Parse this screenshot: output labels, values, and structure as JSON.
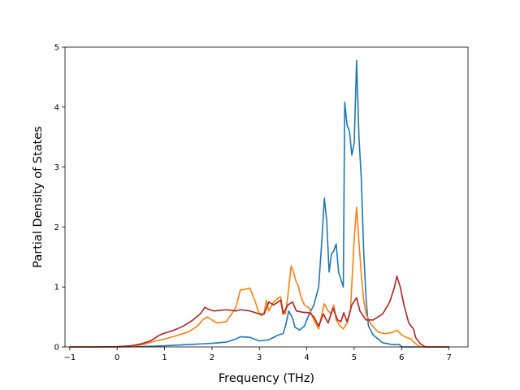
{
  "chart_data": {
    "type": "line",
    "title": "",
    "xlabel": "Frequency (THz)",
    "ylabel": "Partial Density of States",
    "xlim": [
      -1.1,
      7.4
    ],
    "ylim": [
      0,
      5
    ],
    "xticks": [
      -1,
      0,
      1,
      2,
      3,
      4,
      5,
      6,
      7
    ],
    "yticks": [
      0,
      1,
      2,
      3,
      4,
      5
    ],
    "grid": false,
    "legend": "none",
    "series": [
      {
        "color": "#1f77b4",
        "points": [
          [
            -1.0,
            0
          ],
          [
            -0.5,
            0
          ],
          [
            0,
            0
          ],
          [
            0.5,
            0.005
          ],
          [
            1,
            0.02
          ],
          [
            1.5,
            0.04
          ],
          [
            2,
            0.06
          ],
          [
            2.3,
            0.08
          ],
          [
            2.5,
            0.13
          ],
          [
            2.6,
            0.17
          ],
          [
            2.8,
            0.16
          ],
          [
            3,
            0.1
          ],
          [
            3.2,
            0.12
          ],
          [
            3.4,
            0.2
          ],
          [
            3.5,
            0.22
          ],
          [
            3.55,
            0.35
          ],
          [
            3.62,
            0.6
          ],
          [
            3.7,
            0.48
          ],
          [
            3.75,
            0.33
          ],
          [
            3.85,
            0.28
          ],
          [
            3.95,
            0.35
          ],
          [
            4.05,
            0.55
          ],
          [
            4.15,
            0.7
          ],
          [
            4.25,
            1.0
          ],
          [
            4.32,
            1.8
          ],
          [
            4.37,
            2.48
          ],
          [
            4.42,
            2.1
          ],
          [
            4.47,
            1.25
          ],
          [
            4.52,
            1.55
          ],
          [
            4.57,
            1.6
          ],
          [
            4.62,
            1.72
          ],
          [
            4.67,
            1.25
          ],
          [
            4.73,
            1.1
          ],
          [
            4.77,
            1.0
          ],
          [
            4.8,
            4.08
          ],
          [
            4.85,
            3.7
          ],
          [
            4.9,
            3.6
          ],
          [
            4.95,
            3.2
          ],
          [
            5.0,
            3.4
          ],
          [
            5.05,
            4.78
          ],
          [
            5.1,
            3.5
          ],
          [
            5.15,
            2.8
          ],
          [
            5.2,
            1.6
          ],
          [
            5.25,
            0.8
          ],
          [
            5.3,
            0.35
          ],
          [
            5.4,
            0.2
          ],
          [
            5.6,
            0.07
          ],
          [
            5.8,
            0.04
          ],
          [
            5.95,
            0.04
          ],
          [
            6.0,
            0.0
          ],
          [
            6.5,
            0
          ],
          [
            7,
            0
          ]
        ]
      },
      {
        "color": "#ff7f0e",
        "points": [
          [
            -1.0,
            0
          ],
          [
            -0.5,
            0
          ],
          [
            0,
            0
          ],
          [
            0.4,
            0.02
          ],
          [
            0.6,
            0.05
          ],
          [
            0.8,
            0.1
          ],
          [
            1,
            0.13
          ],
          [
            1.3,
            0.2
          ],
          [
            1.5,
            0.25
          ],
          [
            1.7,
            0.35
          ],
          [
            1.8,
            0.45
          ],
          [
            1.9,
            0.5
          ],
          [
            2.0,
            0.45
          ],
          [
            2.1,
            0.4
          ],
          [
            2.3,
            0.42
          ],
          [
            2.5,
            0.65
          ],
          [
            2.6,
            0.95
          ],
          [
            2.7,
            0.96
          ],
          [
            2.8,
            0.98
          ],
          [
            2.9,
            0.78
          ],
          [
            3.0,
            0.55
          ],
          [
            3.05,
            0.52
          ],
          [
            3.1,
            0.57
          ],
          [
            3.15,
            0.78
          ],
          [
            3.2,
            0.6
          ],
          [
            3.3,
            0.75
          ],
          [
            3.4,
            0.82
          ],
          [
            3.45,
            0.83
          ],
          [
            3.5,
            0.58
          ],
          [
            3.55,
            0.55
          ],
          [
            3.6,
            0.85
          ],
          [
            3.67,
            1.35
          ],
          [
            3.72,
            1.25
          ],
          [
            3.77,
            1.1
          ],
          [
            3.82,
            1.02
          ],
          [
            3.87,
            0.85
          ],
          [
            3.95,
            0.7
          ],
          [
            4.05,
            0.65
          ],
          [
            4.15,
            0.45
          ],
          [
            4.25,
            0.3
          ],
          [
            4.32,
            0.55
          ],
          [
            4.37,
            0.72
          ],
          [
            4.45,
            0.6
          ],
          [
            4.52,
            0.55
          ],
          [
            4.57,
            0.7
          ],
          [
            4.62,
            0.45
          ],
          [
            4.7,
            0.35
          ],
          [
            4.77,
            0.3
          ],
          [
            4.85,
            0.4
          ],
          [
            4.92,
            0.6
          ],
          [
            5.0,
            1.8
          ],
          [
            5.05,
            2.33
          ],
          [
            5.1,
            1.75
          ],
          [
            5.15,
            1.2
          ],
          [
            5.2,
            0.78
          ],
          [
            5.25,
            0.55
          ],
          [
            5.35,
            0.38
          ],
          [
            5.5,
            0.25
          ],
          [
            5.65,
            0.22
          ],
          [
            5.8,
            0.24
          ],
          [
            5.9,
            0.28
          ],
          [
            6.0,
            0.2
          ],
          [
            6.1,
            0.16
          ],
          [
            6.2,
            0.13
          ],
          [
            6.3,
            0.05
          ],
          [
            6.4,
            0
          ],
          [
            7,
            0
          ]
        ]
      },
      {
        "color": "#b22222",
        "points": [
          [
            -1.0,
            0
          ],
          [
            -0.5,
            0
          ],
          [
            0,
            0.005
          ],
          [
            0.3,
            0.02
          ],
          [
            0.5,
            0.05
          ],
          [
            0.7,
            0.1
          ],
          [
            0.8,
            0.15
          ],
          [
            0.9,
            0.2
          ],
          [
            1.0,
            0.23
          ],
          [
            1.2,
            0.28
          ],
          [
            1.4,
            0.35
          ],
          [
            1.6,
            0.45
          ],
          [
            1.75,
            0.55
          ],
          [
            1.8,
            0.6
          ],
          [
            1.85,
            0.66
          ],
          [
            1.95,
            0.62
          ],
          [
            2.05,
            0.6
          ],
          [
            2.3,
            0.62
          ],
          [
            2.5,
            0.6
          ],
          [
            2.6,
            0.62
          ],
          [
            2.8,
            0.6
          ],
          [
            3.0,
            0.55
          ],
          [
            3.1,
            0.55
          ],
          [
            3.2,
            0.75
          ],
          [
            3.3,
            0.7
          ],
          [
            3.45,
            0.78
          ],
          [
            3.5,
            0.55
          ],
          [
            3.6,
            0.7
          ],
          [
            3.7,
            0.75
          ],
          [
            3.78,
            0.6
          ],
          [
            3.9,
            0.58
          ],
          [
            4.05,
            0.57
          ],
          [
            4.15,
            0.5
          ],
          [
            4.25,
            0.35
          ],
          [
            4.35,
            0.55
          ],
          [
            4.45,
            0.4
          ],
          [
            4.55,
            0.65
          ],
          [
            4.65,
            0.45
          ],
          [
            4.72,
            0.42
          ],
          [
            4.78,
            0.57
          ],
          [
            4.85,
            0.42
          ],
          [
            4.95,
            0.7
          ],
          [
            5.05,
            0.82
          ],
          [
            5.12,
            0.6
          ],
          [
            5.25,
            0.45
          ],
          [
            5.4,
            0.45
          ],
          [
            5.6,
            0.55
          ],
          [
            5.75,
            0.75
          ],
          [
            5.85,
            1.0
          ],
          [
            5.9,
            1.18
          ],
          [
            5.97,
            1.0
          ],
          [
            6.05,
            0.7
          ],
          [
            6.15,
            0.4
          ],
          [
            6.25,
            0.3
          ],
          [
            6.3,
            0.15
          ],
          [
            6.4,
            0.05
          ],
          [
            6.5,
            0
          ],
          [
            7,
            0
          ]
        ]
      }
    ]
  }
}
